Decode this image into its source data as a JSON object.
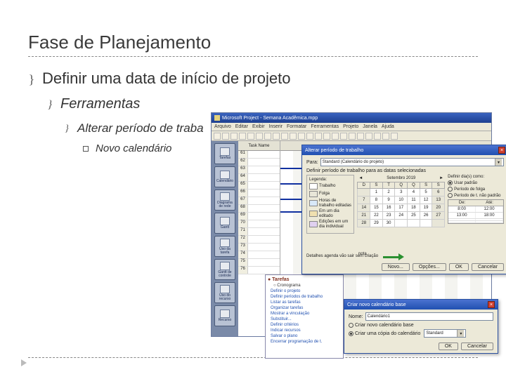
{
  "slide": {
    "title": "Fase de Planejamento",
    "bullet0": "Definir uma data de início de projeto",
    "bullet1": "Ferramentas",
    "bullet2": "Alterar período de traba",
    "bullet3": "Novo calendário"
  },
  "app": {
    "title": "Microsoft Project - Semana Acadêmica.mpp",
    "menus": [
      "Arquivo",
      "Editar",
      "Exibir",
      "Inserir",
      "Formatar",
      "Ferramentas",
      "Projeto",
      "Janela",
      "Ajuda"
    ],
    "sidebar": [
      "Tarefas",
      "Calendário",
      "Diagrama de rede",
      "Gantt",
      "Uso da tarefa",
      "Gantt de controle",
      "Uso do recurso",
      "Recurso"
    ],
    "task_header": "Task Name",
    "row_nums": [
      "61",
      "62",
      "63",
      "64",
      "65",
      "66",
      "67",
      "68",
      "69",
      "70",
      "71",
      "72",
      "73",
      "74",
      "75",
      "76"
    ]
  },
  "dlg1": {
    "title": "Alterar período de trabalho",
    "para_label": "Para:",
    "combo_value": "Standard (Calendário do projeto)",
    "section": "Definir período de trabalho para as datas selecionadas",
    "legend_header": "Legenda:",
    "legend": [
      "Trabalho",
      "Folga",
      "Horas de trabalho editadas",
      "Em um dia editado",
      "Edições em um dia individual"
    ],
    "cal_month": "Setembro 2019",
    "cal_days": [
      "D",
      "S",
      "T",
      "Q",
      "Q",
      "S",
      "S"
    ],
    "cal_rows": [
      [
        "",
        "1",
        "2",
        "3",
        "4",
        "5",
        "6"
      ],
      [
        "7",
        "8",
        "9",
        "10",
        "11",
        "12",
        "13"
      ],
      [
        "14",
        "15",
        "16",
        "17",
        "18",
        "19",
        "20"
      ],
      [
        "21",
        "22",
        "23",
        "24",
        "25",
        "26",
        "27"
      ],
      [
        "28",
        "29",
        "30",
        "",
        "",
        "",
        ""
      ]
    ],
    "radio1": "Usar padrão",
    "radio2": "Período de folga",
    "radio3": "Período de t. não padrão",
    "time_head": [
      "De:",
      "Até:"
    ],
    "time_rows": [
      [
        "8:00",
        "12:00"
      ],
      [
        "13:00",
        "18:00"
      ],
      [
        "",
        ""
      ],
      [
        "",
        ""
      ]
    ],
    "footer": "Detalhes agenda vão sair sem criação",
    "btn_novo": "Novo...",
    "btn_opcoes": "Opções...",
    "btn_ok": "OK",
    "btn_cancel": "Cancelar",
    "nota": "nota"
  },
  "dlg2": {
    "title": "Criar novo calendário base",
    "nome_label": "Nome:",
    "nome_value": "Calendário1",
    "radio1": "Criar novo calendário base",
    "radio2": "Criar uma cópia do calendário",
    "combo_value": "Standard",
    "btn_ok": "OK",
    "btn_cancel": "Cancelar"
  },
  "taskpane": {
    "title": "● Tarefas",
    "sub1": "○ Cronograma",
    "items": [
      "Definir o projeto",
      "Definir períodos de trabalho",
      "Listar as tarefas",
      "Organizar tarefas",
      "Mostrar a vinculação",
      "Substituir...",
      "Definir critérios",
      "Indicar recursos",
      "Salvar o plano",
      "Encerrar programação de t."
    ]
  },
  "colors": {
    "title_color": "#3a3a3a",
    "bg": "#ffffff",
    "dlg_bg": "#ece9d8",
    "titlebar_grad_a": "#4a72d0",
    "titlebar_grad_b": "#2050b0",
    "sidebar_bg": "#7a8aa8",
    "arrow_green": "#2a9030"
  }
}
